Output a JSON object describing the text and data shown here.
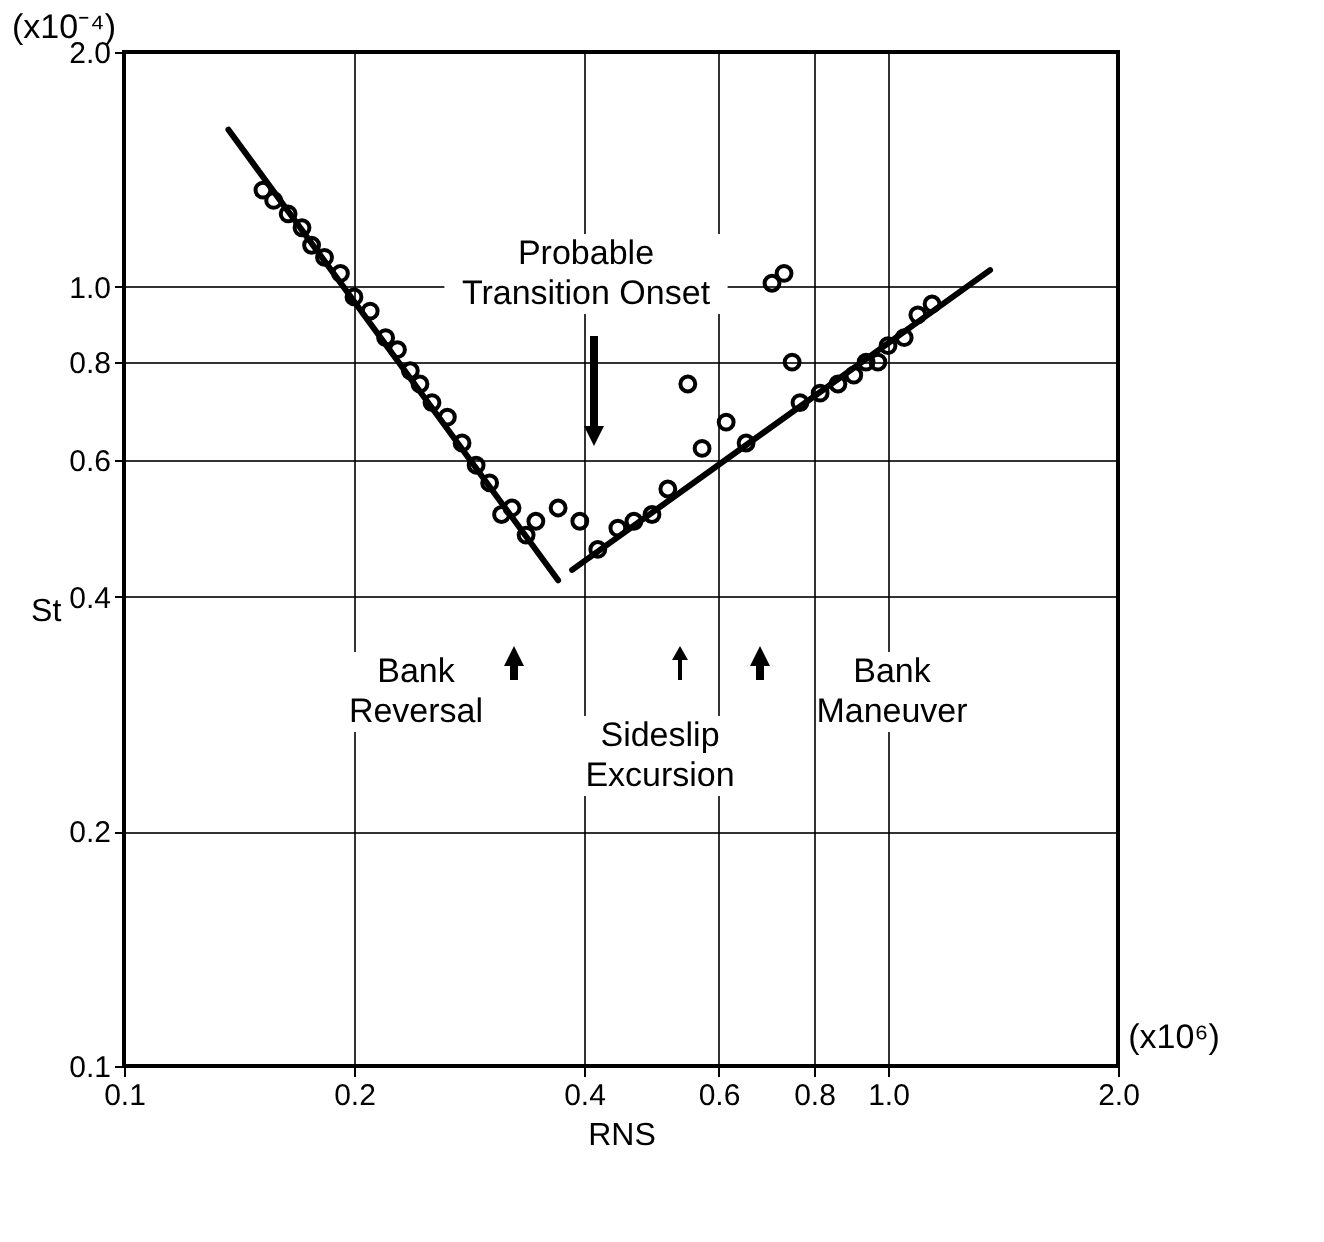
{
  "chart_data": {
    "type": "scatter",
    "xlabel": "RNS",
    "ylabel": "St",
    "log": "xy",
    "grid": true,
    "marker": "circle",
    "xlim": [
      0.1,
      2.0
    ],
    "ylim": [
      0.1,
      2.0
    ],
    "xticks": [
      0.1,
      0.2,
      0.4,
      0.6,
      0.8,
      {
        "value": 1,
        "label": "1.0"
      },
      {
        "value": 2,
        "label": "2.0"
      }
    ],
    "yticks": [
      0.1,
      0.2,
      0.4,
      0.6,
      0.8,
      {
        "value": 1,
        "label": "1.0"
      },
      {
        "value": 2,
        "label": "2.0"
      }
    ],
    "series": [
      {
        "color": "#000000",
        "x": [
          0.152,
          0.157,
          0.164,
          0.171,
          0.176,
          0.183,
          0.192,
          0.2,
          0.21,
          0.22,
          0.228,
          0.237,
          0.244,
          0.253,
          0.265,
          0.277,
          0.289,
          0.301,
          0.312,
          0.322,
          0.336,
          0.346,
          0.37,
          0.395,
          0.417,
          0.443,
          0.465,
          0.491,
          0.515,
          0.547,
          0.571,
          0.614,
          0.652,
          0.705,
          0.731,
          0.749,
          0.767,
          0.815,
          0.86,
          0.902,
          0.936,
          0.97,
          1.0,
          1.05,
          1.094,
          1.142
        ],
        "values": [
          1.33,
          1.29,
          1.24,
          1.19,
          1.13,
          1.09,
          1.04,
          0.97,
          0.93,
          0.86,
          0.83,
          0.78,
          0.75,
          0.71,
          0.68,
          0.63,
          0.59,
          0.56,
          0.51,
          0.52,
          0.48,
          0.5,
          0.52,
          0.5,
          0.46,
          0.49,
          0.5,
          0.51,
          0.55,
          0.75,
          0.62,
          0.67,
          0.63,
          1.01,
          1.04,
          0.8,
          0.71,
          0.73,
          0.75,
          0.77,
          0.8,
          0.8,
          0.84,
          0.86,
          0.92,
          0.95
        ]
      },
      {
        "type": "line",
        "marker": "none",
        "line_style": "solid",
        "color": "#000000",
        "x": [
          0.137,
          0.37
        ],
        "values": [
          1.59,
          0.42
        ]
      },
      {
        "type": "line",
        "marker": "none",
        "line_style": "solid",
        "color": "#000000",
        "x": [
          0.386,
          1.36
        ],
        "values": [
          0.433,
          1.05
        ]
      }
    ],
    "annotations": [
      "Probable\nTransition Onset",
      "Bank\nReversal",
      "Sideslip\nExcursion",
      "Bank\nManeuver",
      "(x10⁻⁴)",
      "(x10⁶)"
    ]
  }
}
